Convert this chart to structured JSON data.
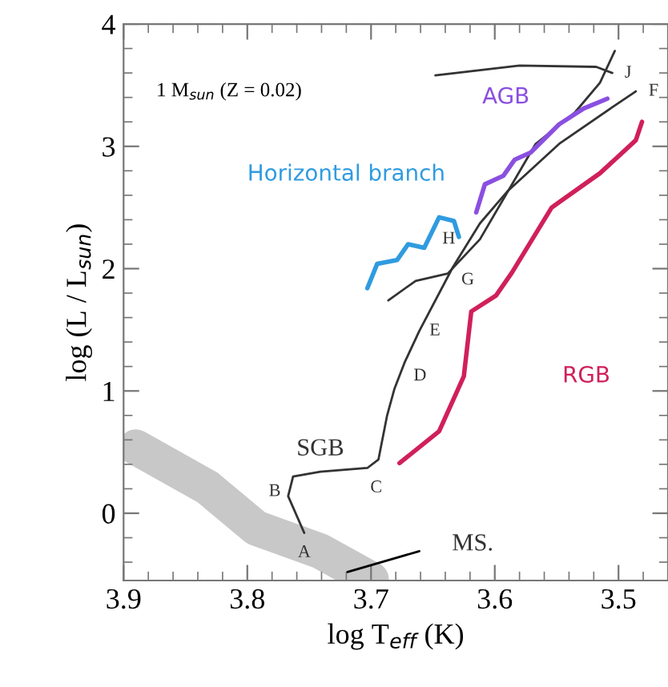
{
  "chart_data": {
    "type": "line",
    "xlabel": "log T$_{eff}$ (K)",
    "ylabel": "log (L / L$_{sun}$)",
    "xlim": [
      3.9,
      3.46
    ],
    "ylim": [
      -0.55,
      4
    ],
    "xticks": [
      3.9,
      3.8,
      3.7,
      3.6,
      3.5,
      {
        "value": 3.88,
        "label": null
      },
      {
        "value": 3.86,
        "label": null
      },
      {
        "value": 3.84,
        "label": null
      },
      {
        "value": 3.82,
        "label": null
      },
      {
        "value": 3.78,
        "label": null
      },
      {
        "value": 3.76,
        "label": null
      },
      {
        "value": 3.74,
        "label": null
      },
      {
        "value": 3.72,
        "label": null
      },
      {
        "value": 3.68,
        "label": null
      },
      {
        "value": 3.66,
        "label": null
      },
      {
        "value": 3.64,
        "label": null
      },
      {
        "value": 3.62,
        "label": null
      },
      {
        "value": 3.58,
        "label": null
      },
      {
        "value": 3.56,
        "label": null
      },
      {
        "value": 3.54,
        "label": null
      },
      {
        "value": 3.52,
        "label": null
      },
      {
        "value": 3.48,
        "label": null
      }
    ],
    "yticks": [
      0,
      1,
      2,
      3,
      4,
      {
        "value": -0.4,
        "label": null
      },
      {
        "value": -0.2,
        "label": null
      },
      {
        "value": 0.2,
        "label": null
      },
      {
        "value": 0.4,
        "label": null
      },
      {
        "value": 0.6,
        "label": null
      },
      {
        "value": 0.8,
        "label": null
      },
      {
        "value": 1.2,
        "label": null
      },
      {
        "value": 1.4,
        "label": null
      },
      {
        "value": 1.6,
        "label": null
      },
      {
        "value": 1.8,
        "label": null
      },
      {
        "value": 2.2,
        "label": null
      },
      {
        "value": 2.4,
        "label": null
      },
      {
        "value": 2.6,
        "label": null
      },
      {
        "value": 2.8,
        "label": null
      },
      {
        "value": 3.2,
        "label": null
      },
      {
        "value": 3.4,
        "label": null
      },
      {
        "value": 3.6,
        "label": null
      },
      {
        "value": 3.8,
        "label": null
      }
    ],
    "grid": false,
    "marker": "none",
    "line_style": "solid",
    "series": [
      {
        "color": "#c8c8c8",
        "name": null,
        "x": [
          3.89,
          3.832,
          3.793,
          3.741,
          3.7
        ],
        "values": [
          0.54,
          0.21,
          -0.12,
          -0.31,
          -0.54
        ]
      },
      {
        "color": "#333333",
        "x": [
          3.754,
          3.767,
          3.763,
          3.741,
          3.703,
          3.694,
          3.687,
          3.681,
          3.673,
          3.661,
          3.634,
          3.612,
          3.59,
          3.548,
          3.505,
          3.486
        ],
        "values": [
          -0.16,
          0.14,
          0.3,
          0.34,
          0.37,
          0.44,
          0.8,
          1.02,
          1.23,
          1.49,
          2.01,
          2.37,
          2.63,
          3.02,
          3.32,
          3.45
        ]
      },
      {
        "color": "#333333",
        "x": [
          3.686,
          3.664,
          3.638,
          3.612,
          3.567,
          3.535,
          3.515,
          3.503
        ],
        "values": [
          1.74,
          1.9,
          1.96,
          2.24,
          3.02,
          3.28,
          3.52,
          3.78
        ]
      },
      {
        "color": "#333333",
        "x": [
          3.505,
          3.518,
          3.58,
          3.648
        ],
        "values": [
          3.6,
          3.65,
          3.66,
          3.58
        ]
      },
      {
        "color": "#2f9be0",
        "name": "Horizontal branch",
        "x": [
          3.703,
          3.695,
          3.679,
          3.67,
          3.657,
          3.645,
          3.633,
          3.629
        ],
        "values": [
          1.84,
          2.04,
          2.07,
          2.2,
          2.17,
          2.42,
          2.39,
          2.26
        ]
      },
      {
        "color": "#8a4fe0",
        "name": "AGB",
        "x": [
          3.615,
          3.608,
          3.593,
          3.584,
          3.571,
          3.548,
          3.528,
          3.509
        ],
        "values": [
          2.46,
          2.69,
          2.76,
          2.89,
          2.95,
          3.18,
          3.31,
          3.39
        ]
      },
      {
        "color": "#d0205a",
        "name": "RGB",
        "x": [
          3.677,
          3.645,
          3.625,
          3.619,
          3.599,
          3.586,
          3.554,
          3.515,
          3.486,
          3.481
        ],
        "values": [
          0.41,
          0.67,
          1.12,
          1.65,
          1.78,
          1.97,
          2.5,
          2.78,
          3.05,
          3.2
        ]
      },
      {
        "color": "#000000",
        "x": [
          3.719,
          3.661
        ],
        "values": [
          -0.48,
          -0.31
        ]
      }
    ],
    "annotations": [
      "1 M$_{sun}$ (Z = 0.02)",
      {
        "text": "A",
        "x": 3.754,
        "y": -0.16
      },
      {
        "text": "B",
        "x": 3.767,
        "y": 0.14
      },
      {
        "text": "C",
        "x": 3.703,
        "y": 0.37
      },
      {
        "text": "D",
        "x": 3.673,
        "y": 1.23
      },
      {
        "text": "E",
        "x": 3.661,
        "y": 1.49
      },
      {
        "text": "F",
        "x": 3.486,
        "y": 3.45
      },
      {
        "text": "G",
        "x": 3.638,
        "y": 1.96
      },
      {
        "text": "H",
        "x": 3.612,
        "y": 2.24
      },
      {
        "text": "J",
        "x": 3.503,
        "y": 3.78
      },
      {
        "text": "SGB",
        "x": 3.741,
        "y": 0.34
      },
      {
        "text": "MS.",
        "x": 3.661,
        "y": -0.31
      }
    ]
  }
}
